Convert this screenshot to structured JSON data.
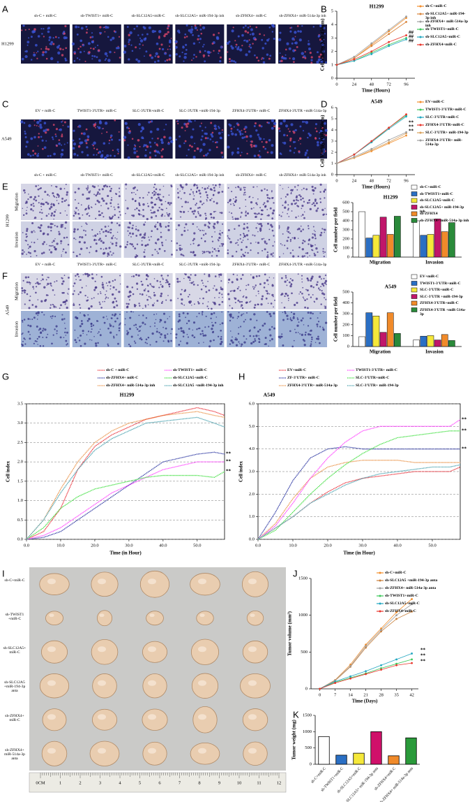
{
  "figure": {
    "panel_a": {
      "letter": "A",
      "row_label": "H1299",
      "images": [
        "sh-C + miR-C",
        "sh-TWIST1+ miR-C",
        "sh-SLC12A5+miR-C",
        "sh-SLC12A5+ miR-194-3p inh",
        "sh-ZFHX4+ miR-C",
        "sh-ZFHX4+ miR-514a-3p inh"
      ]
    },
    "panel_c": {
      "letter": "C",
      "row_label": "A549",
      "images": [
        "EV + miR-C",
        "TWIST1-3'UTR+ miR-C",
        "SLC-3'UTR+miR-C",
        "SLC-3'UTR +miR-194-3p",
        "ZFHX4-3'UTR+ miR-C",
        "ZFHX4-3'UTR +miR-514a-3p"
      ]
    },
    "panel_e": {
      "letter": "E",
      "side_label": "H1299",
      "row_labels": [
        "Migration",
        "Invasion"
      ],
      "images": [
        "sh-C + miR-C",
        "sh-TWIST1+ miR-C",
        "sh-SLC12A5+miR-C",
        "sh-SLC12A5+ miR-194-3p inh",
        "sh-ZFHX4+ miR-C",
        "sh-ZFHX4+ miR-514a-3p inh"
      ]
    },
    "panel_f": {
      "letter": "F",
      "side_label": "A549",
      "row_labels": [
        "Migration",
        "Invasion"
      ],
      "images": [
        "EV + miR-C",
        "TWIST1-3'UTR+ miR-C",
        "SLC-3'UTR+miR-C",
        "SLC-3'UTR +miR-194-3p",
        "ZFHX4-3'UTR+ miR-C",
        "ZFHX4-3'UTR +miR-514a-3p"
      ]
    },
    "panel_i": {
      "letter": "I",
      "rows": [
        "sh-C+miR-C",
        "sh-TWIST1 +miR-C",
        "sh-SLC12A5+ miR-C",
        "sh-SLC12A5 +miR-194-3p anta",
        "sh-ZFHX4+ miR-C",
        "sh-ZFHX4+ miR-514a-3p anta"
      ],
      "ruler": [
        "0CM",
        "1",
        "2",
        "3",
        "4",
        "5",
        "6",
        "7",
        "8",
        "9",
        "10",
        "11",
        "12"
      ]
    }
  },
  "chart_data": [
    {
      "type": "line",
      "letter": "B",
      "title": "H1299",
      "xlabel": "Time (Hours)",
      "ylabel": "Cell Vitality (OD 450nm)",
      "x": [
        0,
        24,
        48,
        72,
        96
      ],
      "xlim": [
        0,
        108
      ],
      "xticks": [
        0,
        24,
        48,
        72,
        96
      ],
      "ylim": [
        0,
        5
      ],
      "yticks": [
        0,
        1,
        2,
        3,
        4,
        5
      ],
      "annotations": [
        "##",
        "##",
        "##"
      ],
      "series": [
        {
          "name": "sh-C+miR-C",
          "color": "#f28e2b",
          "values": [
            1,
            1.5,
            2.5,
            3.5,
            4.5
          ]
        },
        {
          "name": "sh-SLC12A5+ miR-194-3p inh",
          "color": "#d9843b",
          "values": [
            1,
            1.5,
            2.4,
            3.3,
            4.2
          ]
        },
        {
          "name": "sh-ZFHX4+ miR-514a-3p inh",
          "color": "#9e9e9e",
          "values": [
            1,
            1.6,
            2.6,
            3.6,
            4.6
          ]
        },
        {
          "name": "sh-TWIST1+miR-C",
          "color": "#3cc85a",
          "values": [
            1,
            1.3,
            1.9,
            2.5,
            3.0
          ]
        },
        {
          "name": "sh-SLC12A5+miR-C",
          "color": "#22a6c0",
          "values": [
            1,
            1.3,
            1.8,
            2.4,
            2.9
          ]
        },
        {
          "name": "sh-ZFHX4+miR-C",
          "color": "#e8352b",
          "values": [
            1,
            1.4,
            2.0,
            2.7,
            3.2
          ]
        }
      ]
    },
    {
      "type": "line",
      "letter": "D",
      "title": "A549",
      "xlabel": "Time (Hours)",
      "ylabel": "Cell Vitality (OD 450nm)",
      "x": [
        0,
        24,
        48,
        72,
        96
      ],
      "xlim": [
        0,
        108
      ],
      "xticks": [
        0,
        24,
        48,
        72,
        96
      ],
      "ylim": [
        0,
        6
      ],
      "yticks": [
        0,
        1,
        2,
        3,
        4,
        5,
        6
      ],
      "annotations": [
        "**",
        "**",
        "**"
      ],
      "series": [
        {
          "name": "EV+miR-C",
          "color": "#f28e2b",
          "values": [
            1,
            1.5,
            2.1,
            2.8,
            3.5
          ]
        },
        {
          "name": "TWIST1-3'UTR+miR-C",
          "color": "#3cc85a",
          "values": [
            1,
            1.8,
            2.9,
            4.2,
            5.3
          ]
        },
        {
          "name": "SLC-3'UTR+miR-C",
          "color": "#22a6c0",
          "values": [
            1,
            1.8,
            2.9,
            4.1,
            5.2
          ]
        },
        {
          "name": "ZFHX4-3'UTR+miR-C",
          "color": "#e8352b",
          "values": [
            1,
            1.8,
            3.0,
            4.2,
            5.4
          ]
        },
        {
          "name": "SLC-3'UTR+ miR-194-3p",
          "color": "#d9a05b",
          "values": [
            1,
            1.5,
            2.2,
            2.9,
            3.7
          ]
        },
        {
          "name": "ZFHX4-3'UTR+ miR-514a-3p",
          "color": "#9e9e9e",
          "values": [
            1,
            1.6,
            2.3,
            3.1,
            3.8
          ]
        }
      ]
    },
    {
      "type": "bar",
      "title": "H1299",
      "ylabel": "Cell number per field",
      "categories": [
        "Migration",
        "Invasion"
      ],
      "ylim": [
        0,
        600
      ],
      "yticks": [
        0,
        100,
        200,
        300,
        400,
        500,
        600
      ],
      "series": [
        {
          "name": "sh-C+miR-C",
          "color": "#ffffff",
          "values": [
            500,
            400
          ]
        },
        {
          "name": "sh-TWIST1+miR-C",
          "color": "#2a6fc4",
          "values": [
            210,
            240
          ]
        },
        {
          "name": "sh-SLC12A5+miR-C",
          "color": "#f5e83a",
          "values": [
            240,
            250
          ]
        },
        {
          "name": "sh-SLC12A5+ miR-194-3p inh",
          "color": "#c0166a",
          "values": [
            440,
            420
          ]
        },
        {
          "name": "sh-ZFHX4",
          "color": "#f08a2a",
          "values": [
            250,
            280
          ]
        },
        {
          "name": "sh-ZFHX4+ miR-514a-3p inh",
          "color": "#2a8a3a",
          "values": [
            450,
            380
          ]
        }
      ]
    },
    {
      "type": "bar",
      "title": "A549",
      "ylabel": "Cell number per field",
      "categories": [
        "Migration",
        "Invasion"
      ],
      "ylim": [
        0,
        500
      ],
      "yticks": [
        0,
        100,
        200,
        300,
        400,
        500
      ],
      "series": [
        {
          "name": "EV+miR-C",
          "color": "#ffffff",
          "values": [
            90,
            60
          ]
        },
        {
          "name": "TWIST1-3'UTR+miR-C",
          "color": "#2a6fc4",
          "values": [
            310,
            95
          ]
        },
        {
          "name": "SLC-3'UTR+miR-C",
          "color": "#f5e83a",
          "values": [
            280,
            100
          ]
        },
        {
          "name": "SLC-3'UTR +miR-194-3p",
          "color": "#c0166a",
          "values": [
            130,
            60
          ]
        },
        {
          "name": "ZFHX4-3'UTR+miR-C",
          "color": "#f08a2a",
          "values": [
            310,
            110
          ]
        },
        {
          "name": "ZFHX4-3'UTR +miR-514a-3p",
          "color": "#2a8a3a",
          "values": [
            120,
            55
          ]
        }
      ]
    },
    {
      "type": "line",
      "letter": "G",
      "title": "H1299",
      "xlabel": "Time (in Hour)",
      "ylabel": "Cell index",
      "grid": true,
      "x": [
        0,
        5,
        10,
        15,
        20,
        25,
        30,
        35,
        40,
        45,
        50,
        55,
        58
      ],
      "xlim": [
        0,
        58
      ],
      "xticks": [
        {
          "value": 0,
          "label": "0.0"
        },
        {
          "value": 10,
          "label": "10.0"
        },
        {
          "value": 20,
          "label": "20.0"
        },
        {
          "value": 30,
          "label": "30.0"
        },
        {
          "value": 40,
          "label": "40.0"
        },
        {
          "value": 50,
          "label": "50.0"
        }
      ],
      "ylim": [
        0,
        3.5
      ],
      "yticks": [
        {
          "value": 0,
          "label": "0.0"
        },
        0.5,
        {
          "value": 1,
          "label": "1.0"
        },
        1.5,
        {
          "value": 2,
          "label": "2.0"
        },
        2.5,
        {
          "value": 3,
          "label": "3.0"
        },
        3.5
      ],
      "annotations": [
        "**",
        "**",
        "**"
      ],
      "series": [
        {
          "name": "sh-C + miR-C",
          "color": "#e8202a",
          "values": [
            0,
            0.2,
            0.8,
            1.8,
            2.4,
            2.7,
            2.9,
            3.1,
            3.2,
            3.3,
            3.4,
            3.3,
            3.2
          ]
        },
        {
          "name": "sh-ZFHX4+ miR-C",
          "color": "#1f2a9c",
          "values": [
            0,
            0.05,
            0.2,
            0.5,
            0.8,
            1.1,
            1.4,
            1.7,
            2.0,
            2.1,
            2.2,
            2.25,
            2.2
          ]
        },
        {
          "name": "sh-ZFHX4+ miR-514a-3p inh",
          "color": "#e88a3a",
          "values": [
            0,
            0.5,
            1.3,
            2.0,
            2.5,
            2.8,
            3.0,
            3.1,
            3.2,
            3.25,
            3.3,
            3.2,
            3.15
          ]
        },
        {
          "name": "sh-TWIST1+ miR-C",
          "color": "#ff33ff",
          "values": [
            0,
            0.1,
            0.3,
            0.6,
            0.9,
            1.2,
            1.4,
            1.6,
            1.8,
            1.9,
            2.0,
            2.0,
            2.0
          ]
        },
        {
          "name": "sh-SLC12A5+miR-C",
          "color": "#33dd33",
          "values": [
            0,
            0.3,
            0.8,
            1.1,
            1.3,
            1.4,
            1.5,
            1.6,
            1.65,
            1.65,
            1.65,
            1.6,
            1.75
          ]
        },
        {
          "name": "sh-SLC12A5 +miR-194-3p inh",
          "color": "#3a9aa8",
          "values": [
            0,
            0.5,
            1.2,
            1.8,
            2.3,
            2.6,
            2.8,
            3.0,
            3.05,
            3.1,
            3.15,
            3.0,
            2.9
          ]
        }
      ]
    },
    {
      "type": "line",
      "letter": "H",
      "title": "A549",
      "xlabel": "Time (in Hour)",
      "ylabel": "Cell index",
      "grid": true,
      "x": [
        0,
        5,
        10,
        15,
        20,
        25,
        30,
        35,
        40,
        45,
        50,
        55,
        58
      ],
      "xlim": [
        0,
        58
      ],
      "xticks": [
        {
          "value": 0,
          "label": "0.0"
        },
        {
          "value": 10,
          "label": "10.0"
        },
        {
          "value": 20,
          "label": "20.0"
        },
        {
          "value": 30,
          "label": "30.0"
        },
        {
          "value": 40,
          "label": "40.0"
        },
        {
          "value": 50,
          "label": "50.0"
        }
      ],
      "ylim": [
        0,
        6
      ],
      "yticks": [
        {
          "value": 0,
          "label": "0.0"
        },
        {
          "value": 1,
          "label": "1.0"
        },
        {
          "value": 2,
          "label": "2.0"
        },
        {
          "value": 3,
          "label": "3.0"
        },
        {
          "value": 4,
          "label": "4.0"
        },
        {
          "value": 5,
          "label": "5.0"
        },
        {
          "value": 6,
          "label": "6.0"
        }
      ],
      "annotations": [
        "**",
        "**",
        "**"
      ],
      "series": [
        {
          "name": "EV+miR-C",
          "color": "#e8202a",
          "values": [
            0,
            0.5,
            1.0,
            1.6,
            2.1,
            2.5,
            2.7,
            2.8,
            2.9,
            3.0,
            3.0,
            3.0,
            3.2
          ]
        },
        {
          "name": "ZF-3'UTR+ miR-C",
          "color": "#1f2a9c",
          "values": [
            0,
            1.2,
            2.6,
            3.6,
            4.0,
            4.1,
            4.0,
            4.0,
            4.0,
            4.0,
            4.0,
            4.0,
            4.0
          ]
        },
        {
          "name": "ZFHX4-3'UTR+ miR-514a-3p",
          "color": "#e88a3a",
          "values": [
            0,
            0.7,
            1.8,
            2.7,
            3.2,
            3.4,
            3.5,
            3.5,
            3.5,
            3.4,
            3.4,
            3.4,
            3.4
          ]
        },
        {
          "name": "TWIST1-3'UTR+ miR-C",
          "color": "#ff33ff",
          "values": [
            0,
            0.6,
            1.6,
            2.7,
            3.6,
            4.3,
            4.8,
            5.0,
            5.0,
            5.0,
            5.0,
            5.0,
            5.3
          ]
        },
        {
          "name": "SLC-3'UTR+miR-C",
          "color": "#33dd33",
          "values": [
            0,
            0.4,
            1.2,
            2.0,
            2.7,
            3.3,
            3.8,
            4.2,
            4.5,
            4.6,
            4.7,
            4.8,
            4.8
          ]
        },
        {
          "name": "SLC-3'UTR+ miR-194-3p",
          "color": "#3a9aa8",
          "values": [
            0,
            0.5,
            1.0,
            1.6,
            2.0,
            2.4,
            2.7,
            2.9,
            3.0,
            3.1,
            3.2,
            3.2,
            3.3
          ]
        }
      ]
    },
    {
      "type": "line",
      "letter": "J",
      "xlabel": "Time (Days)",
      "ylabel": "Tumor volume (mm³)",
      "x": [
        0,
        7,
        14,
        21,
        28,
        35,
        42
      ],
      "xlim": [
        -4,
        45
      ],
      "xticks": [
        0,
        7,
        14,
        21,
        28,
        35,
        42
      ],
      "ylim": [
        0,
        1500
      ],
      "yticks": [
        0,
        500,
        1000,
        1500
      ],
      "annotations": [
        "**",
        "**",
        "**"
      ],
      "series": [
        {
          "name": "sh-C+miR-C",
          "color": "#f28e2b",
          "values": [
            0,
            120,
            330,
            600,
            820,
            1040,
            1220
          ]
        },
        {
          "name": "sh-SLC12A5 +miR-194-3p anta",
          "color": "#c9803b",
          "values": [
            0,
            110,
            300,
            560,
            780,
            950,
            1050
          ]
        },
        {
          "name": "sh-ZFHX4+ miR-514a-3p anta",
          "color": "#9e9e9e",
          "values": [
            0,
            115,
            310,
            580,
            800,
            1000,
            1150
          ]
        },
        {
          "name": "sh-TWIST1+miR-C",
          "color": "#3cc85a",
          "values": [
            0,
            90,
            150,
            210,
            280,
            340,
            400
          ]
        },
        {
          "name": "sh-SLC12A5+miR-C",
          "color": "#22a6c0",
          "values": [
            0,
            100,
            170,
            240,
            320,
            400,
            480
          ]
        },
        {
          "name": "sh-ZFHX4+miR-C",
          "color": "#e8352b",
          "values": [
            0,
            80,
            140,
            200,
            260,
            320,
            350
          ]
        }
      ]
    },
    {
      "type": "bar",
      "letter": "K",
      "ylabel": "Tumor weight (mg)",
      "categories": [
        "sh-C+miR-C",
        "sh-TWIST1+miR-C",
        "sh-SLC12A5+miR-C",
        "sh-SLC12A5+ miR-194-3p anta",
        "sh-ZFHX4+miR-C",
        "sh-ZFHX4+ miR-514a-3p anta"
      ],
      "values": [
        850,
        280,
        340,
        1000,
        260,
        810
      ],
      "colors": [
        "#ffffff",
        "#2a6fc4",
        "#f5e83a",
        "#d0106a",
        "#f08a2a",
        "#2a9a3a"
      ],
      "ylim": [
        0,
        1500
      ],
      "yticks": [
        0,
        500,
        1000,
        1500
      ]
    }
  ]
}
